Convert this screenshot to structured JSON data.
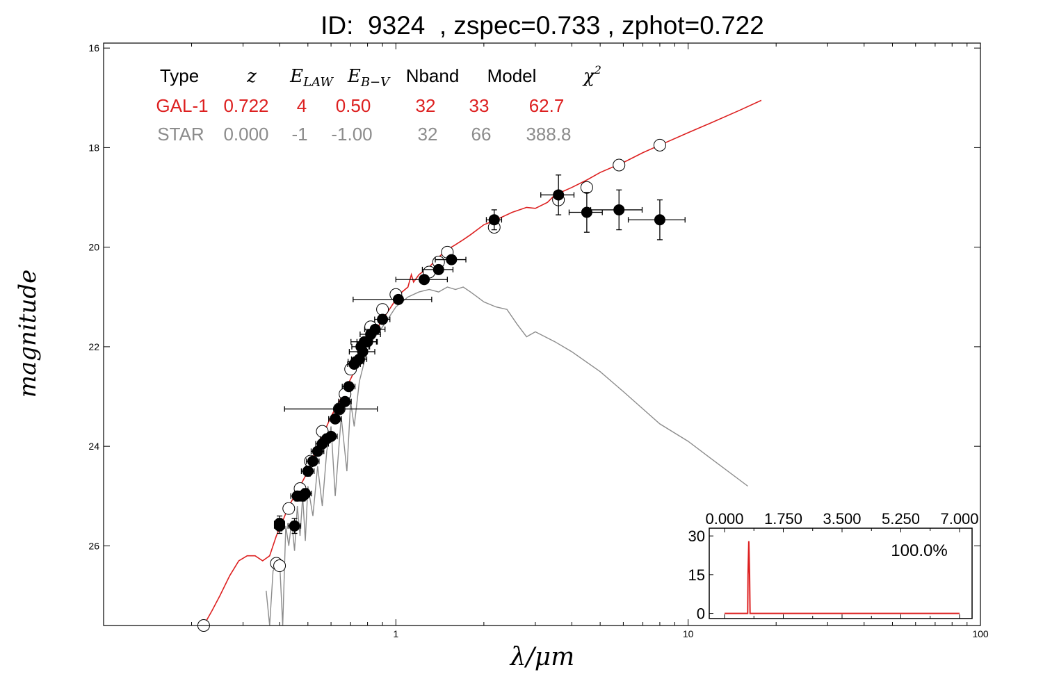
{
  "title": "ID:  9324  , zspec=0.733 , zphot=0.722",
  "colors": {
    "galaxy": "#dd2020",
    "star": "#8c8c8c",
    "frame": "#000000"
  },
  "chart_data": {
    "type": "scatter",
    "xlabel": "λ/μm",
    "ylabel": "magnitude",
    "xscale": "log",
    "xlim": [
      0.1,
      100
    ],
    "ylim": [
      27.6,
      15.9
    ],
    "yaxis_inverted": true,
    "x_ticks": [
      "1",
      "10",
      "100"
    ],
    "y_ticks": [
      "16",
      "18",
      "20",
      "22",
      "24",
      "26"
    ],
    "fit_table": {
      "headers": [
        "Type",
        "z",
        "E_LAW",
        "E_B−V",
        "Nband",
        "Model",
        "χ²"
      ],
      "rows": [
        [
          "GAL-1",
          "0.722",
          "4",
          "0.50",
          "32",
          "33",
          "62.7"
        ],
        [
          "STAR",
          "0.000",
          "-1",
          "-1.00",
          "32",
          "66",
          "388.8"
        ]
      ]
    },
    "series": [
      {
        "kind": "model-line",
        "row": "GAL-1",
        "x": [
          0.22,
          0.235,
          0.25,
          0.27,
          0.29,
          0.31,
          0.33,
          0.35,
          0.37,
          0.39,
          0.41,
          0.43,
          0.45,
          0.47,
          0.5,
          0.53,
          0.56,
          0.6,
          0.64,
          0.68,
          0.72,
          0.76,
          0.8,
          0.85,
          0.9,
          0.95,
          1.0,
          1.05,
          1.1,
          1.13,
          1.15,
          1.2,
          1.3,
          1.4,
          1.5,
          1.6,
          1.7,
          1.8,
          2.0,
          2.2,
          2.5,
          2.8,
          3.0,
          3.3,
          3.5,
          4.0,
          4.5,
          5.0,
          6.0,
          7.0,
          8.0,
          10.0,
          12.0,
          15.0,
          17.8
        ],
        "y": [
          27.6,
          27.3,
          27.0,
          26.6,
          26.3,
          26.2,
          26.2,
          26.3,
          26.2,
          25.8,
          25.5,
          25.2,
          25.0,
          24.8,
          24.5,
          24.1,
          23.8,
          23.4,
          23.1,
          22.8,
          22.5,
          22.2,
          21.95,
          21.7,
          21.45,
          21.25,
          21.05,
          20.9,
          20.8,
          20.55,
          20.7,
          20.55,
          20.4,
          20.2,
          20.05,
          19.95,
          19.85,
          19.75,
          19.55,
          19.45,
          19.3,
          19.2,
          19.22,
          19.1,
          18.95,
          18.8,
          18.65,
          18.5,
          18.3,
          18.1,
          17.95,
          17.7,
          17.5,
          17.25,
          17.05
        ]
      },
      {
        "kind": "model-line",
        "row": "STAR",
        "x": [
          0.36,
          0.37,
          0.38,
          0.4,
          0.41,
          0.42,
          0.43,
          0.44,
          0.45,
          0.46,
          0.47,
          0.48,
          0.49,
          0.5,
          0.52,
          0.54,
          0.56,
          0.58,
          0.6,
          0.62,
          0.65,
          0.68,
          0.7,
          0.72,
          0.75,
          0.78,
          0.8,
          0.85,
          0.9,
          0.95,
          1.0,
          1.05,
          1.1,
          1.2,
          1.3,
          1.4,
          1.5,
          1.6,
          1.7,
          1.8,
          1.9,
          2.0,
          2.2,
          2.4,
          2.6,
          2.8,
          3.0,
          3.5,
          4.0,
          5.0,
          6.0,
          7.0,
          8.0,
          10.0,
          12.0,
          16.0
        ],
        "y": [
          26.9,
          27.6,
          26.5,
          26.3,
          27.6,
          25.6,
          26.0,
          25.5,
          26.1,
          25.2,
          25.8,
          25.0,
          25.9,
          24.8,
          25.4,
          24.4,
          25.2,
          24.1,
          23.6,
          25.0,
          23.4,
          24.5,
          23.1,
          23.6,
          22.7,
          22.3,
          22.0,
          21.8,
          21.6,
          21.4,
          21.2,
          21.1,
          21.0,
          20.9,
          20.85,
          20.9,
          20.8,
          20.85,
          20.8,
          20.9,
          21.0,
          21.1,
          21.2,
          21.25,
          21.55,
          21.8,
          21.7,
          21.9,
          22.1,
          22.5,
          22.9,
          23.25,
          23.55,
          23.9,
          24.25,
          24.8
        ]
      },
      {
        "kind": "model-magnitudes",
        "marker": "open-circle",
        "x": [
          0.22,
          0.39,
          0.4,
          0.43,
          0.47,
          0.51,
          0.56,
          0.64,
          0.67,
          0.7,
          0.77,
          0.82,
          0.9,
          1.0,
          1.3,
          1.4,
          1.5,
          2.17,
          3.6,
          4.5,
          5.8,
          8.0
        ],
        "y": [
          27.6,
          26.35,
          26.4,
          25.25,
          24.85,
          24.3,
          23.7,
          23.25,
          22.95,
          22.45,
          22.0,
          21.6,
          21.25,
          20.95,
          20.5,
          20.3,
          20.1,
          19.6,
          19.05,
          18.8,
          18.35,
          17.95
        ]
      },
      {
        "kind": "observed-photometry",
        "marker": "filled-circle",
        "x": [
          0.4,
          0.4,
          0.45,
          0.46,
          0.48,
          0.49,
          0.5,
          0.52,
          0.54,
          0.56,
          0.58,
          0.6,
          0.62,
          0.64,
          0.67,
          0.69,
          0.72,
          0.73,
          0.75,
          0.76,
          0.77,
          0.78,
          0.8,
          0.82,
          0.85,
          0.9,
          1.02,
          1.25,
          1.4,
          1.55,
          2.17,
          3.6,
          4.5,
          5.8,
          8.0
        ],
        "y": [
          25.55,
          25.6,
          25.6,
          25.0,
          25.0,
          24.95,
          24.5,
          24.3,
          24.1,
          23.95,
          23.85,
          23.8,
          23.45,
          23.25,
          23.1,
          22.8,
          22.35,
          22.3,
          22.25,
          22.0,
          22.1,
          21.9,
          21.9,
          21.75,
          21.65,
          21.45,
          21.05,
          20.65,
          20.45,
          20.25,
          19.45,
          18.95,
          19.3,
          19.25,
          19.45
        ],
        "xerr_frac": [
          0.04,
          0.04,
          0.05,
          0.05,
          0.04,
          0.05,
          0.05,
          0.05,
          0.05,
          0.05,
          0.05,
          0.05,
          0.05,
          0.35,
          0.05,
          0.05,
          0.05,
          0.06,
          0.06,
          0.07,
          0.1,
          0.1,
          0.08,
          0.08,
          0.08,
          0.06,
          0.3,
          0.2,
          0.12,
          0.12,
          0.06,
          0.13,
          0.13,
          0.2,
          0.22
        ],
        "yerr": [
          0.15,
          0.15,
          0.15,
          0.1,
          0.1,
          0.1,
          0.1,
          0.08,
          0.08,
          0.08,
          0.06,
          0.06,
          0.06,
          0.06,
          0.06,
          0.05,
          0.05,
          0.05,
          0.05,
          0.05,
          0.05,
          0.05,
          0.05,
          0.05,
          0.05,
          0.05,
          0.05,
          0.05,
          0.05,
          0.05,
          0.2,
          0.4,
          0.4,
          0.4,
          0.4
        ]
      }
    ],
    "inset": {
      "type": "line",
      "description": "redshift probability distribution",
      "x_ticks": [
        "0.000",
        "1.750",
        "3.500",
        "5.250",
        "7.000"
      ],
      "y_ticks": [
        "30",
        "15",
        "0"
      ],
      "xlim": [
        0,
        7
      ],
      "ylim": [
        -2,
        33
      ],
      "label": "100.0%",
      "x": [
        0,
        0.69,
        0.7,
        0.722,
        0.745,
        0.76,
        7.0
      ],
      "y": [
        0,
        0,
        15,
        28,
        15,
        0,
        0
      ]
    }
  }
}
